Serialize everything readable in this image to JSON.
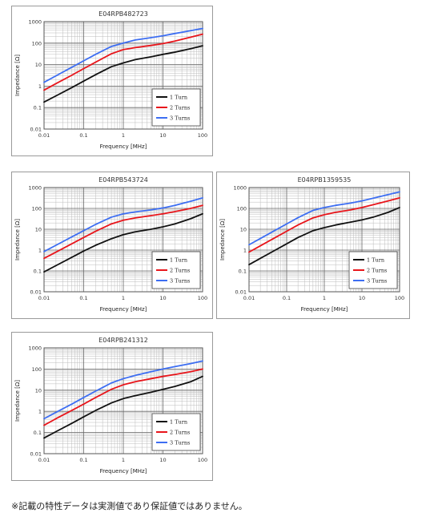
{
  "colors": {
    "turn1": "#111111",
    "turn2": "#e8151b",
    "turn3": "#3d6ef2",
    "grid_major": "#666666",
    "grid_minor": "#bcbcbc"
  },
  "chart_data": [
    {
      "type": "line",
      "title": "E04RPB482723",
      "xlabel": "Frequency [MHz]",
      "ylabel": "Impedance [Ω]",
      "xscale": "log",
      "yscale": "log",
      "xlim": [
        0.01,
        100
      ],
      "ylim": [
        0.01,
        1000
      ],
      "xticks": [
        "0.01",
        "0.1",
        "1",
        "10",
        "100"
      ],
      "yticks": [
        "1000",
        "100",
        "10",
        "1",
        "0.1",
        "0.01"
      ],
      "grid": true,
      "legend": "bottom-right",
      "x": [
        0.01,
        0.02,
        0.05,
        0.1,
        0.2,
        0.5,
        1,
        2,
        5,
        10,
        20,
        50,
        100
      ],
      "series": [
        {
          "name": "1 Turn",
          "color": "#111111",
          "values": [
            0.18,
            0.35,
            0.85,
            1.7,
            3.4,
            8,
            12,
            17,
            23,
            30,
            38,
            55,
            75
          ]
        },
        {
          "name": "2 Turns",
          "color": "#e8151b",
          "values": [
            0.65,
            1.3,
            3.2,
            6.5,
            13,
            32,
            50,
            62,
            78,
            95,
            125,
            190,
            260
          ]
        },
        {
          "name": "3 Turns",
          "color": "#3d6ef2",
          "values": [
            1.5,
            3,
            7.5,
            15,
            30,
            70,
            100,
            140,
            180,
            220,
            280,
            380,
            480
          ]
        }
      ]
    },
    {
      "type": "line",
      "title": "E04RPB543724",
      "xlabel": "Frequency [MHz]",
      "ylabel": "Impedance [Ω]",
      "xscale": "log",
      "yscale": "log",
      "xlim": [
        0.01,
        100
      ],
      "ylim": [
        0.01,
        1000
      ],
      "xticks": [
        "0.01",
        "0.1",
        "1",
        "10",
        "100"
      ],
      "yticks": [
        "1000",
        "100",
        "10",
        "1",
        "0.1",
        "0.01"
      ],
      "grid": true,
      "legend": "bottom-right",
      "x": [
        0.01,
        0.02,
        0.05,
        0.1,
        0.2,
        0.5,
        1,
        2,
        5,
        10,
        20,
        50,
        100
      ],
      "series": [
        {
          "name": "1 Turn",
          "color": "#111111",
          "values": [
            0.09,
            0.18,
            0.45,
            0.9,
            1.7,
            3.5,
            5.5,
            7.5,
            10,
            13,
            18,
            32,
            55
          ]
        },
        {
          "name": "2 Turns",
          "color": "#e8151b",
          "values": [
            0.4,
            0.8,
            2,
            4,
            8,
            18,
            27,
            35,
            45,
            55,
            70,
            100,
            140
          ]
        },
        {
          "name": "3 Turns",
          "color": "#3d6ef2",
          "values": [
            0.85,
            1.7,
            4.3,
            8.5,
            17,
            38,
            55,
            68,
            85,
            105,
            140,
            220,
            320
          ]
        }
      ]
    },
    {
      "type": "line",
      "title": "E04RPB1359535",
      "xlabel": "Frequency [MHz]",
      "ylabel": "Impedance [Ω]",
      "xscale": "log",
      "yscale": "log",
      "xlim": [
        0.01,
        100
      ],
      "ylim": [
        0.01,
        1000
      ],
      "xticks": [
        "0.01",
        "0.1",
        "1",
        "10",
        "100"
      ],
      "yticks": [
        "1000",
        "100",
        "10",
        "1",
        "0.1",
        "0.01"
      ],
      "grid": true,
      "legend": "bottom-right",
      "x": [
        0.01,
        0.02,
        0.05,
        0.1,
        0.2,
        0.5,
        1,
        2,
        5,
        10,
        20,
        50,
        100
      ],
      "series": [
        {
          "name": "1 Turn",
          "color": "#111111",
          "values": [
            0.2,
            0.4,
            1,
            2,
            4,
            8.5,
            12,
            16,
            22,
            28,
            38,
            65,
            110
          ]
        },
        {
          "name": "2 Turns",
          "color": "#e8151b",
          "values": [
            0.8,
            1.6,
            4,
            8,
            16,
            35,
            50,
            65,
            85,
            110,
            150,
            230,
            320
          ]
        },
        {
          "name": "3 Turns",
          "color": "#3d6ef2",
          "values": [
            1.8,
            3.6,
            9,
            18,
            36,
            80,
            110,
            140,
            180,
            230,
            310,
            460,
            620
          ]
        }
      ]
    },
    {
      "type": "line",
      "title": "E04RPB241312",
      "xlabel": "Frequency [MHz]",
      "ylabel": "Impedance [Ω]",
      "xscale": "log",
      "yscale": "log",
      "xlim": [
        0.01,
        100
      ],
      "ylim": [
        0.01,
        1000
      ],
      "xticks": [
        "0.01",
        "0.1",
        "1",
        "10",
        "100"
      ],
      "yticks": [
        "1000",
        "100",
        "10",
        "1",
        "0.1",
        "0.01"
      ],
      "grid": true,
      "legend": "bottom-right",
      "x": [
        0.01,
        0.02,
        0.05,
        0.1,
        0.2,
        0.5,
        1,
        2,
        5,
        10,
        20,
        50,
        100
      ],
      "series": [
        {
          "name": "1 Turn",
          "color": "#111111",
          "values": [
            0.055,
            0.11,
            0.27,
            0.55,
            1.1,
            2.5,
            4,
            5.5,
            8,
            11,
            15,
            25,
            45
          ]
        },
        {
          "name": "2 Turns",
          "color": "#e8151b",
          "values": [
            0.22,
            0.45,
            1.1,
            2.2,
            4.5,
            11,
            18,
            25,
            35,
            45,
            55,
            75,
            100
          ]
        },
        {
          "name": "3 Turns",
          "color": "#3d6ef2",
          "values": [
            0.45,
            0.9,
            2.2,
            4.5,
            9,
            22,
            35,
            50,
            75,
            100,
            130,
            180,
            240
          ]
        }
      ]
    }
  ],
  "footnote": "※記載の特性データは実測値であり保証値ではありません。"
}
